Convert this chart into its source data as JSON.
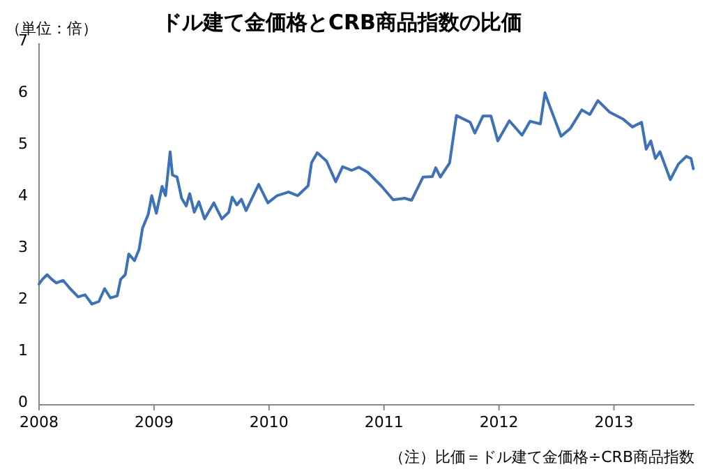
{
  "chart_data": {
    "type": "line",
    "title": "ドル建て金価格とCRB商品指数の比価",
    "ylabel": "（単位：倍）",
    "annotations": [
      "（注）比価＝ドル建て金価格÷CRB商品指数"
    ],
    "xlim": [
      2008,
      2013.7
    ],
    "xticks": [
      2008,
      2009,
      2010,
      2011,
      2012,
      2013
    ],
    "ylim": [
      0,
      7
    ],
    "yticks": [
      0,
      1,
      2,
      3,
      4,
      5,
      6,
      7
    ],
    "grid": false,
    "marker": "none",
    "line_style": "solid",
    "series": [
      {
        "color": "#3d72b8",
        "x": [
          2008.0,
          2008.03,
          2008.07,
          2008.11,
          2008.15,
          2008.21,
          2008.27,
          2008.34,
          2008.4,
          2008.46,
          2008.52,
          2008.57,
          2008.62,
          2008.68,
          2008.71,
          2008.75,
          2008.78,
          2008.83,
          2008.87,
          2008.9,
          2008.95,
          2008.98,
          2009.02,
          2009.07,
          2009.1,
          2009.14,
          2009.16,
          2009.2,
          2009.24,
          2009.28,
          2009.31,
          2009.35,
          2009.39,
          2009.44,
          2009.52,
          2009.59,
          2009.65,
          2009.68,
          2009.72,
          2009.76,
          2009.8,
          2009.91,
          2009.99,
          2010.07,
          2010.17,
          2010.25,
          2010.34,
          2010.37,
          2010.42,
          2010.5,
          2010.58,
          2010.64,
          2010.72,
          2010.78,
          2010.86,
          2010.98,
          2011.08,
          2011.18,
          2011.24,
          2011.34,
          2011.42,
          2011.45,
          2011.49,
          2011.57,
          2011.63,
          2011.75,
          2011.79,
          2011.86,
          2011.93,
          2011.99,
          2012.09,
          2012.2,
          2012.27,
          2012.36,
          2012.4,
          2012.43,
          2012.54,
          2012.62,
          2012.72,
          2012.79,
          2012.86,
          2012.96,
          2013.08,
          2013.16,
          2013.24,
          2013.28,
          2013.32,
          2013.36,
          2013.4,
          2013.49,
          2013.56,
          2013.63,
          2013.67,
          2013.69
        ],
        "values": [
          2.34,
          2.43,
          2.52,
          2.43,
          2.36,
          2.41,
          2.25,
          2.09,
          2.13,
          1.95,
          2.0,
          2.25,
          2.07,
          2.11,
          2.43,
          2.52,
          2.92,
          2.79,
          3.01,
          3.42,
          3.69,
          4.05,
          3.71,
          4.23,
          4.05,
          4.9,
          4.45,
          4.41,
          4.0,
          3.85,
          4.09,
          3.73,
          3.93,
          3.6,
          3.91,
          3.6,
          3.73,
          4.02,
          3.87,
          3.98,
          3.76,
          4.27,
          3.91,
          4.05,
          4.12,
          4.05,
          4.24,
          4.69,
          4.88,
          4.72,
          4.32,
          4.61,
          4.54,
          4.6,
          4.5,
          4.23,
          3.97,
          4.0,
          3.96,
          4.41,
          4.42,
          4.59,
          4.41,
          4.68,
          5.6,
          5.47,
          5.26,
          5.59,
          5.59,
          5.11,
          5.5,
          5.22,
          5.49,
          5.44,
          6.04,
          5.85,
          5.2,
          5.35,
          5.71,
          5.62,
          5.89,
          5.67,
          5.53,
          5.38,
          5.47,
          4.95,
          5.11,
          4.77,
          4.9,
          4.36,
          4.66,
          4.81,
          4.77,
          4.57
        ]
      }
    ]
  }
}
